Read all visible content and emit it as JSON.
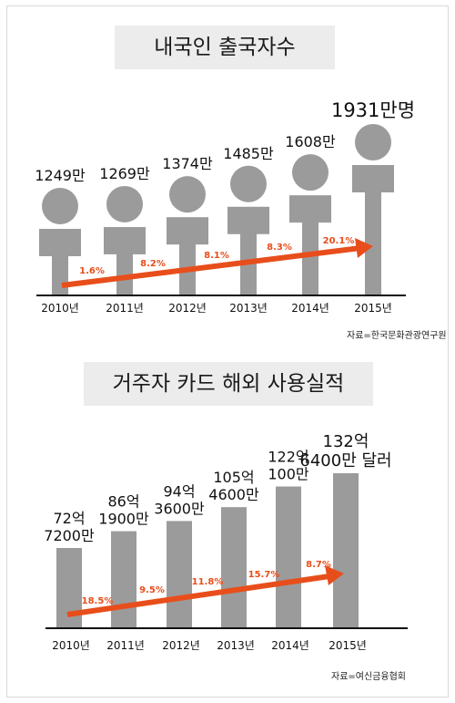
{
  "chart_data": [
    {
      "type": "bar",
      "title": "내국인 출국자수",
      "categories": [
        "2010년",
        "2011년",
        "2012년",
        "2013년",
        "2014년",
        "2015년"
      ],
      "values": [
        1249,
        1269,
        1374,
        1485,
        1608,
        1931
      ],
      "value_labels": [
        "1249만",
        "1269만",
        "1374만",
        "1485만",
        "1608만",
        "1931만명"
      ],
      "growth_labels": [
        "1.6%",
        "8.2%",
        "8.1%",
        "8.3%",
        "20.1%"
      ],
      "unit": "만명",
      "source": "자료=한국문화관광연구원",
      "bar_color": "#9b9b9b",
      "accent_color": "#e84e1b"
    },
    {
      "type": "bar",
      "title": "거주자 카드 해외 사용실적",
      "categories": [
        "2010년",
        "2011년",
        "2012년",
        "2013년",
        "2014년",
        "2015년"
      ],
      "values": [
        72.72,
        86.19,
        94.36,
        105.46,
        122.01,
        132.64
      ],
      "value_labels": [
        [
          "72억",
          "7200만"
        ],
        [
          "86억",
          "1900만"
        ],
        [
          "94억",
          "3600만"
        ],
        [
          "105억",
          "4600만"
        ],
        [
          "122억",
          "100만"
        ],
        [
          "132억",
          "6400만 달러"
        ]
      ],
      "growth_labels": [
        "18.5%",
        "9.5%",
        "11.8%",
        "15.7%",
        "8.7%"
      ],
      "unit": "달러",
      "source": "자료=여신금융협회",
      "bar_color": "#9b9b9b",
      "accent_color": "#e84e1b"
    }
  ]
}
